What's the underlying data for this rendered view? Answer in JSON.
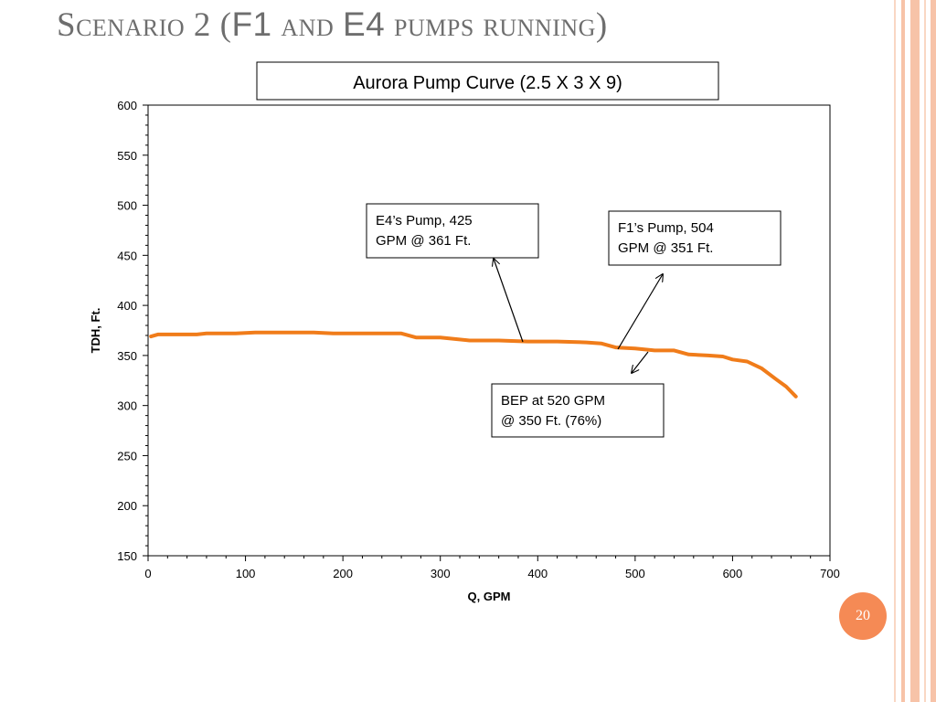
{
  "slide": {
    "title_part1": "Scenario 2 (",
    "title_part2": "F1",
    "title_part3": " and ",
    "title_part4": "E4",
    "title_part5": " pumps running)",
    "page_number": "20",
    "accent_color": "#f58a55",
    "stripe_color": "#f7c3a8"
  },
  "chart_data": {
    "type": "line",
    "title": "Aurora Pump Curve (2.5 X 3 X 9)",
    "xlabel": "Q, GPM",
    "ylabel": "TDH, Ft.",
    "xlim": [
      0,
      700
    ],
    "ylim": [
      150,
      600
    ],
    "xticks": [
      0,
      100,
      200,
      300,
      400,
      500,
      600,
      700
    ],
    "yticks": [
      150,
      200,
      250,
      300,
      350,
      400,
      450,
      500,
      550,
      600
    ],
    "grid": false,
    "legend": "none",
    "series": [
      {
        "color": "#f07c1a",
        "points": [
          [
            3,
            369
          ],
          [
            10,
            371
          ],
          [
            30,
            371
          ],
          [
            50,
            371
          ],
          [
            60,
            372
          ],
          [
            90,
            372
          ],
          [
            110,
            373
          ],
          [
            130,
            373
          ],
          [
            170,
            373
          ],
          [
            190,
            372
          ],
          [
            230,
            372
          ],
          [
            260,
            372
          ],
          [
            275,
            368
          ],
          [
            300,
            368
          ],
          [
            330,
            365
          ],
          [
            360,
            365
          ],
          [
            390,
            364
          ],
          [
            420,
            364
          ],
          [
            450,
            363
          ],
          [
            465,
            362
          ],
          [
            480,
            358
          ],
          [
            500,
            357
          ],
          [
            520,
            355
          ],
          [
            540,
            355
          ],
          [
            555,
            351
          ],
          [
            575,
            350
          ],
          [
            590,
            349
          ],
          [
            600,
            346
          ],
          [
            615,
            344
          ],
          [
            630,
            337
          ],
          [
            645,
            326
          ],
          [
            655,
            319
          ],
          [
            665,
            309
          ]
        ]
      }
    ],
    "annotations": [
      {
        "text_line1": "E4’s Pump, 425",
        "text_line2": "GPM @ 361 Ft.",
        "target": [
          385,
          364
        ]
      },
      {
        "text_line1": "F1’s Pump, 504",
        "text_line2": "GPM @ 351 Ft.",
        "target": [
          483,
          357
        ]
      },
      {
        "text_line1": "BEP at 520 GPM",
        "text_line2": "@ 350 Ft. (76%)",
        "target": [
          502,
          358
        ]
      }
    ]
  }
}
